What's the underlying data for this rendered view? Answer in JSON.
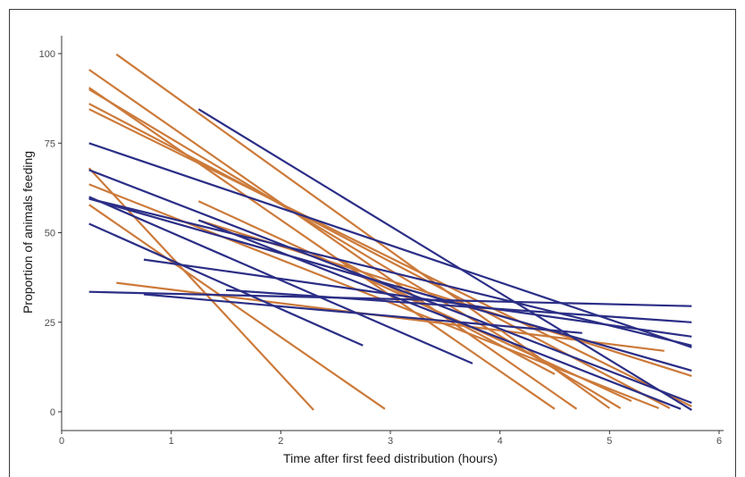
{
  "chart_data": {
    "type": "line",
    "title": "",
    "xlabel": "Time after first feed distribution (hours)",
    "ylabel": "Proportion of animals feeding",
    "xlim": [
      0,
      6
    ],
    "ylim": [
      0,
      100
    ],
    "xticks": [
      0,
      1,
      2,
      3,
      4,
      5,
      6
    ],
    "yticks": [
      0,
      25,
      50,
      75,
      100
    ],
    "grid": false,
    "legend": "none",
    "colors": {
      "orange": "#cc7a3a",
      "blue": "#2b2e86"
    },
    "segments": [
      {
        "group": "orange",
        "x": [
          0.5,
          5.0
        ],
        "y": [
          99.8,
          1.0
        ]
      },
      {
        "group": "orange",
        "x": [
          0.25,
          4.7
        ],
        "y": [
          95.5,
          0.8
        ]
      },
      {
        "group": "orange",
        "x": [
          0.25,
          4.5
        ],
        "y": [
          90.5,
          0.8
        ]
      },
      {
        "group": "orange",
        "x": [
          0.25,
          5.1
        ],
        "y": [
          90.0,
          1.0
        ]
      },
      {
        "group": "orange",
        "x": [
          0.25,
          5.55
        ],
        "y": [
          86.0,
          1.0
        ]
      },
      {
        "group": "orange",
        "x": [
          0.25,
          5.75
        ],
        "y": [
          84.5,
          1.5
        ]
      },
      {
        "group": "orange",
        "x": [
          0.25,
          5.45
        ],
        "y": [
          63.5,
          1.0
        ]
      },
      {
        "group": "orange",
        "x": [
          1.25,
          5.2
        ],
        "y": [
          58.8,
          3.0
        ]
      },
      {
        "group": "orange",
        "x": [
          0.25,
          2.95
        ],
        "y": [
          57.8,
          0.8
        ]
      },
      {
        "group": "orange",
        "x": [
          0.25,
          2.3
        ],
        "y": [
          68.0,
          0.5
        ]
      },
      {
        "group": "orange",
        "x": [
          1.25,
          5.75
        ],
        "y": [
          53.5,
          10.0
        ]
      },
      {
        "group": "orange",
        "x": [
          0.5,
          5.5
        ],
        "y": [
          36.0,
          17.0
        ]
      },
      {
        "group": "orange",
        "x": [
          2.5,
          4.5
        ],
        "y": [
          43.0,
          10.5
        ]
      },
      {
        "group": "blue",
        "x": [
          1.25,
          5.75
        ],
        "y": [
          84.5,
          0.5
        ]
      },
      {
        "group": "blue",
        "x": [
          0.25,
          5.75
        ],
        "y": [
          75.0,
          18.0
        ]
      },
      {
        "group": "blue",
        "x": [
          0.25,
          5.75
        ],
        "y": [
          67.5,
          2.5
        ]
      },
      {
        "group": "blue",
        "x": [
          0.25,
          5.75
        ],
        "y": [
          59.5,
          11.5
        ]
      },
      {
        "group": "blue",
        "x": [
          0.25,
          5.75
        ],
        "y": [
          59.5,
          18.5
        ]
      },
      {
        "group": "blue",
        "x": [
          0.25,
          3.75
        ],
        "y": [
          60.0,
          13.5
        ]
      },
      {
        "group": "blue",
        "x": [
          0.25,
          2.75
        ],
        "y": [
          52.5,
          18.5
        ]
      },
      {
        "group": "blue",
        "x": [
          1.25,
          5.65
        ],
        "y": [
          53.5,
          0.8
        ]
      },
      {
        "group": "blue",
        "x": [
          0.75,
          5.75
        ],
        "y": [
          42.5,
          21.0
        ]
      },
      {
        "group": "blue",
        "x": [
          0.25,
          5.75
        ],
        "y": [
          33.5,
          29.5
        ]
      },
      {
        "group": "blue",
        "x": [
          1.5,
          5.75
        ],
        "y": [
          34.0,
          25.0
        ]
      },
      {
        "group": "blue",
        "x": [
          0.75,
          4.75
        ],
        "y": [
          32.8,
          22.0
        ]
      }
    ]
  }
}
